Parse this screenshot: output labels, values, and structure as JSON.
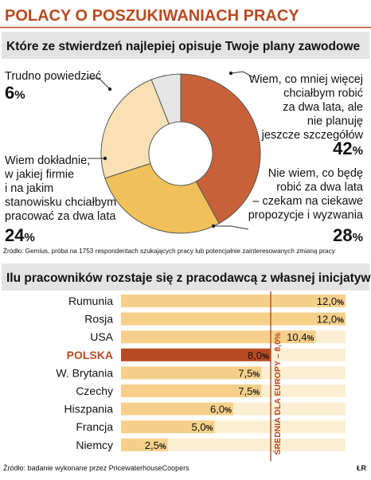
{
  "header": {
    "title": "POLACY O POSZUKIWANIACH PRACY"
  },
  "chart_data": [
    {
      "type": "pie",
      "title": "Które ze stwierdzeń najlepiej opisuje Twoje plany zawodowe",
      "slices": [
        {
          "label": [
            "Wiem, co mniej więcej",
            "chciałbym robić",
            "za dwa lata, ale",
            "nie planuję",
            "jeszcze szczegółów"
          ],
          "value": 42,
          "value_text": "42",
          "color": "#c8613a"
        },
        {
          "label": [
            "Nie wiem, co będę",
            "robić za dwa lata",
            "– czekam na ciekawe",
            "propozycje i wyzwania"
          ],
          "value": 28,
          "value_text": "28",
          "color": "#f0c15a"
        },
        {
          "label": [
            "Wiem dokładnie,",
            "w jakiej firmie",
            "i na jakim",
            "stanowisku chciałbym",
            "pracować za dwa lata"
          ],
          "value": 24,
          "value_text": "24",
          "color": "#fae1b5"
        },
        {
          "label": [
            "Trudno powiedzieć"
          ],
          "value": 6,
          "value_text": "6",
          "color": "#e6e6e6"
        }
      ],
      "percent_sign": "%",
      "source": "Źródło: Gemius, próba na 1753 respondentach szukających pracy lub potencjalnie zainteresowanych zmianą pracy"
    },
    {
      "type": "bar",
      "orientation": "horizontal",
      "title": "Ilu pracowników rozstaje się z pracodawcą z własnej inicjatywy",
      "categories": [
        "Rumunia",
        "Rosja",
        "USA",
        "POLSKA",
        "W. Brytania",
        "Czechy",
        "Hiszpania",
        "Francja",
        "Niemcy"
      ],
      "values": [
        12.0,
        12.0,
        10.4,
        8.0,
        7.5,
        7.5,
        6.0,
        5.0,
        2.5
      ],
      "value_labels": [
        "12,0",
        "12,0",
        "10,4",
        "8,0",
        "7,5",
        "7,5",
        "6,0",
        "5,0",
        "2,5"
      ],
      "percent_sign": "%",
      "highlight": "POLSKA",
      "reference_line": {
        "value": 8.0,
        "label": "ŚREDNIA DLA EUROPY – 8,0%"
      },
      "xlim": [
        0,
        12.0
      ],
      "colors": {
        "bar": "#f6d08a",
        "highlight": "#b84a22",
        "stripe": "#fbeed3",
        "text": "#3a1f10"
      },
      "source": "Źródło: badanie wykonane przez PricewaterhouseCoopers",
      "credit": "ŁR"
    }
  ]
}
